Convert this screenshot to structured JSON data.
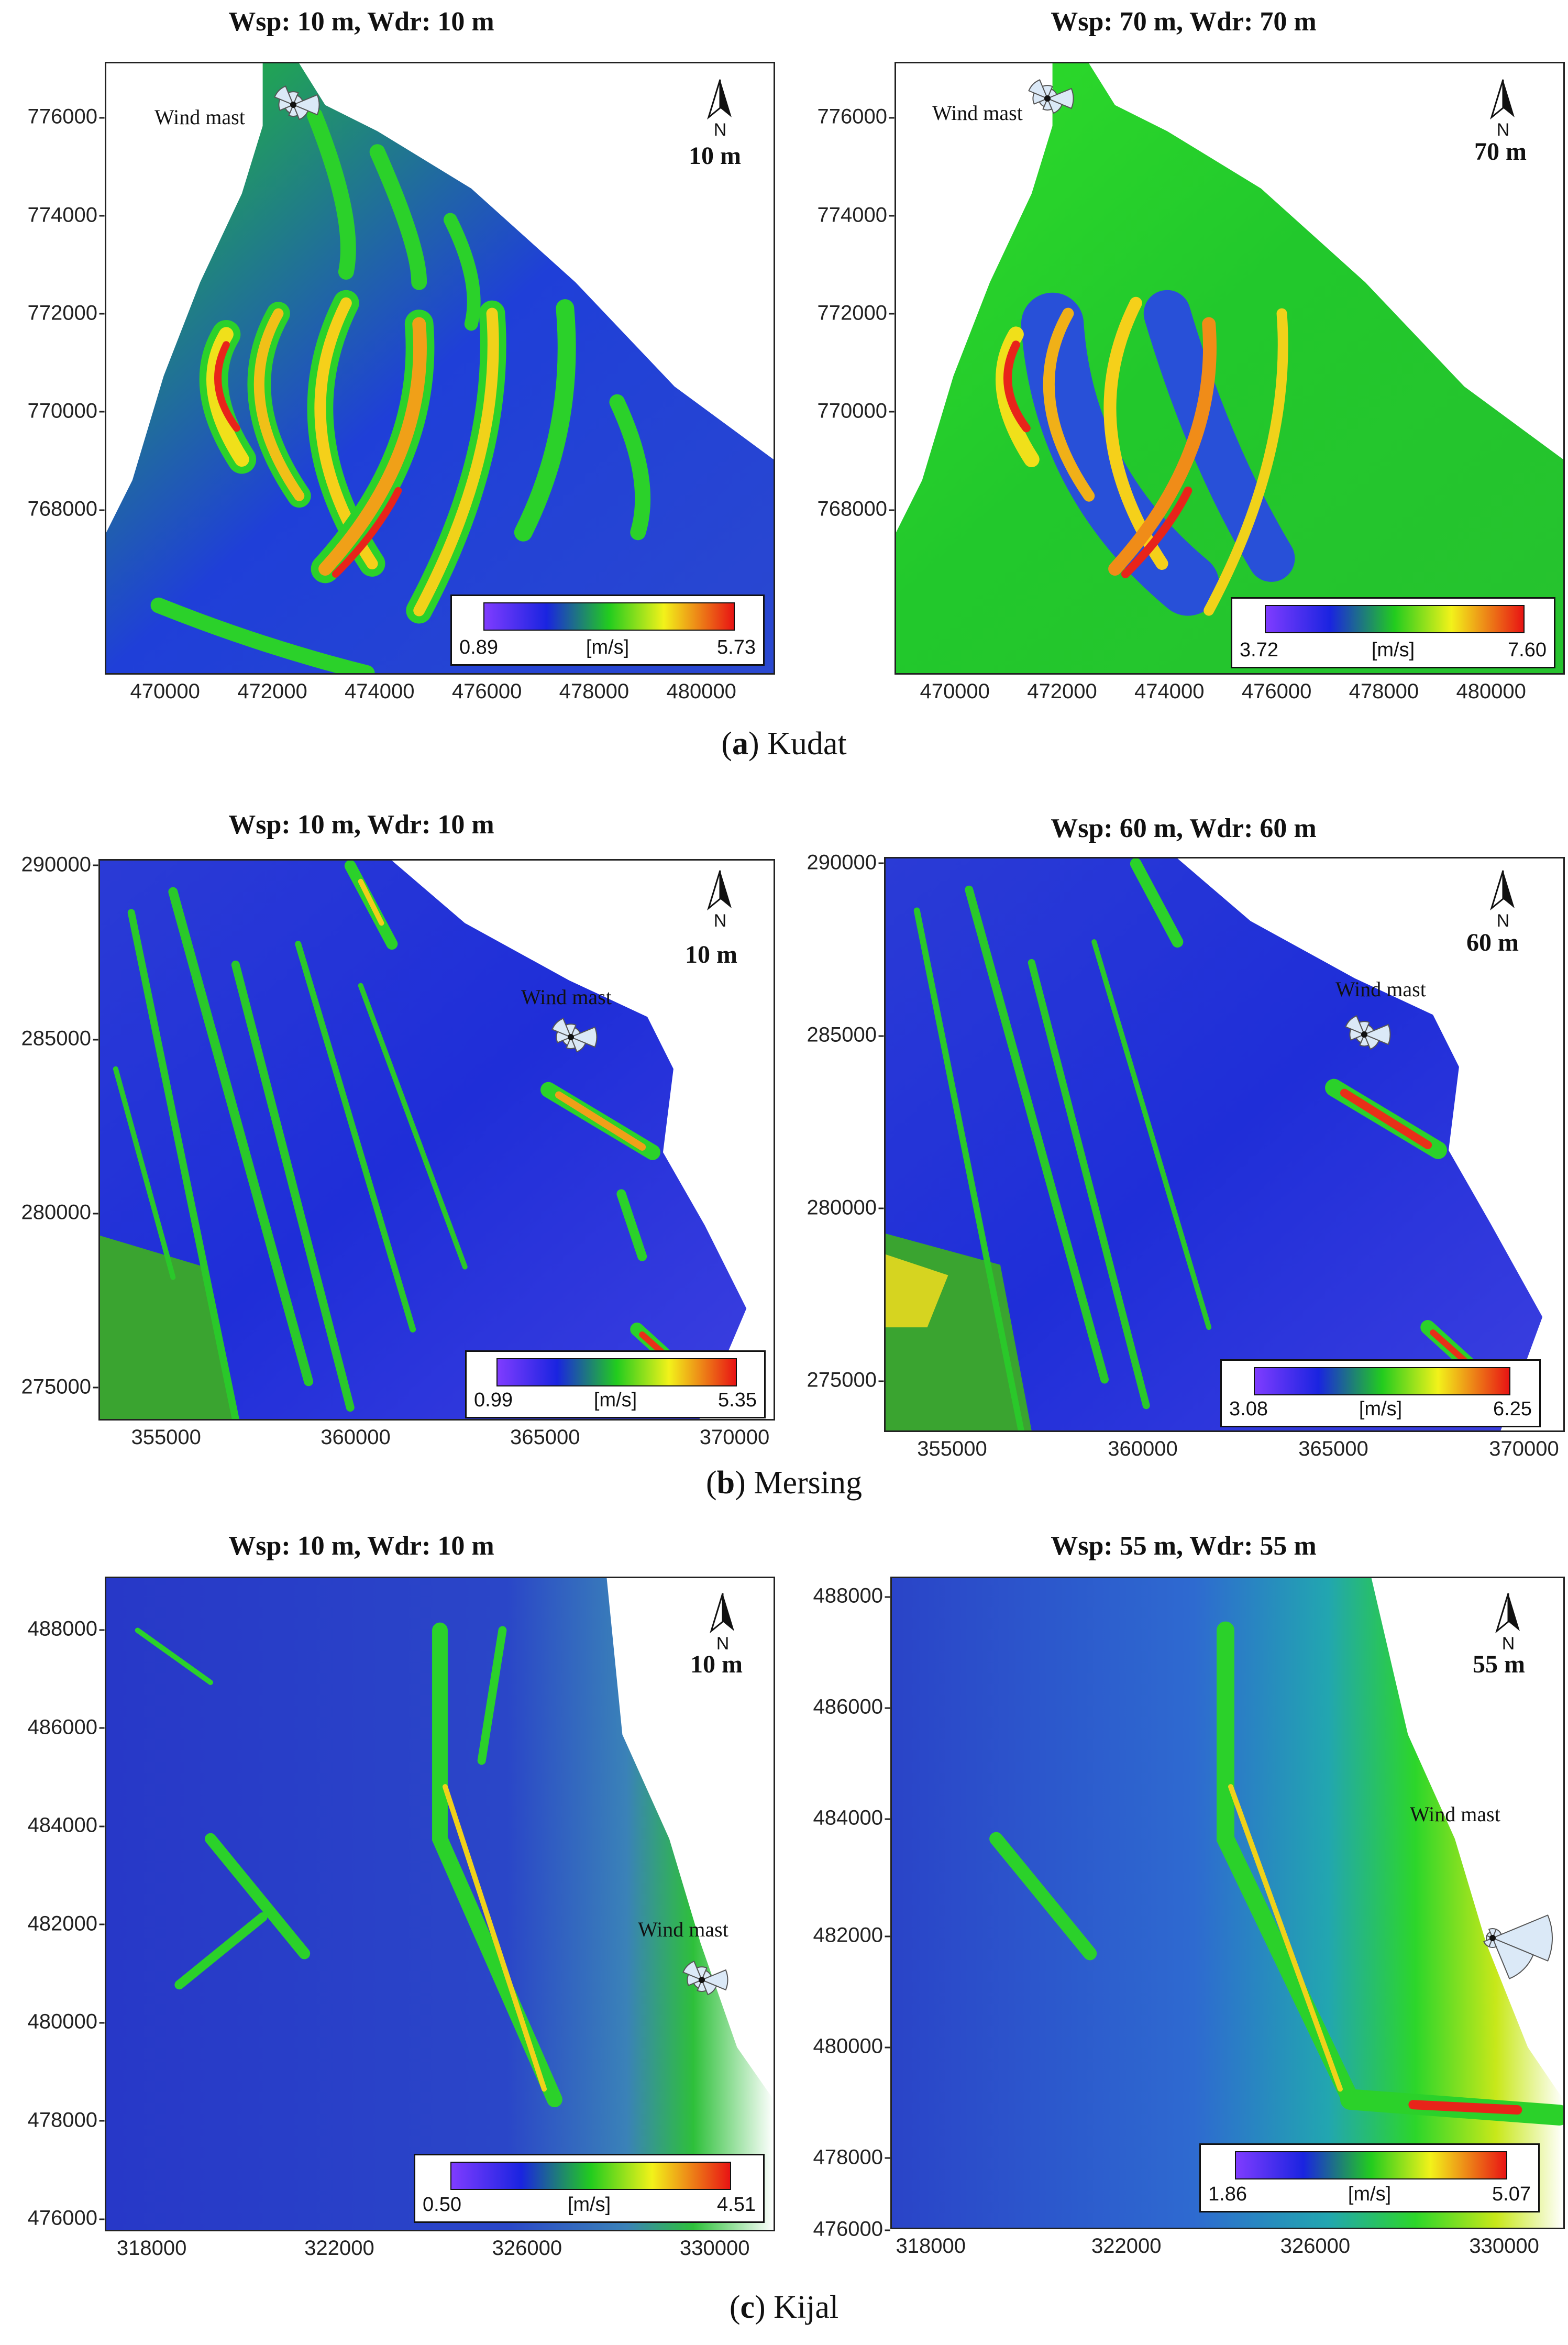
{
  "rows": [
    {
      "caption": {
        "letter": "a",
        "name": "Kudat"
      },
      "panels": [
        {
          "title": "Wsp: 10 m, Wdr: 10 m",
          "height_label": "10 m",
          "north": "N",
          "mast_label": "Wind mast",
          "legend": {
            "min": "0.89",
            "unit": "[m/s]",
            "max": "5.73"
          },
          "yticks": [
            "776000",
            "774000",
            "772000",
            "770000",
            "768000"
          ],
          "xticks": [
            "470000",
            "472000",
            "474000",
            "476000",
            "478000",
            "480000"
          ]
        },
        {
          "title": "Wsp: 70 m, Wdr: 70 m",
          "height_label": "70 m",
          "north": "N",
          "mast_label": "Wind mast",
          "legend": {
            "min": "3.72",
            "unit": "[m/s]",
            "max": "7.60"
          },
          "yticks": [
            "776000",
            "774000",
            "772000",
            "770000",
            "768000"
          ],
          "xticks": [
            "470000",
            "472000",
            "474000",
            "476000",
            "478000",
            "480000"
          ]
        }
      ]
    },
    {
      "caption": {
        "letter": "b",
        "name": "Mersing"
      },
      "panels": [
        {
          "title": "Wsp: 10 m, Wdr: 10 m",
          "height_label": "10 m",
          "north": "N",
          "mast_label": "Wind mast",
          "legend": {
            "min": "0.99",
            "unit": "[m/s]",
            "max": "5.35"
          },
          "yticks": [
            "290000",
            "285000",
            "280000",
            "275000"
          ],
          "xticks": [
            "355000",
            "360000",
            "365000",
            "370000"
          ]
        },
        {
          "title": "Wsp: 60 m, Wdr: 60 m",
          "height_label": "60 m",
          "north": "N",
          "mast_label": "Wind mast",
          "legend": {
            "min": "3.08",
            "unit": "[m/s]",
            "max": "6.25"
          },
          "yticks": [
            "290000",
            "285000",
            "280000",
            "275000"
          ],
          "xticks": [
            "355000",
            "360000",
            "365000",
            "370000"
          ]
        }
      ]
    },
    {
      "caption": {
        "letter": "c",
        "name": "Kijal"
      },
      "panels": [
        {
          "title": "Wsp: 10 m, Wdr: 10 m",
          "height_label": "10 m",
          "north": "N",
          "mast_label": "Wind mast",
          "legend": {
            "min": "0.50",
            "unit": "[m/s]",
            "max": "4.51"
          },
          "yticks": [
            "488000",
            "486000",
            "484000",
            "482000",
            "480000",
            "478000",
            "476000"
          ],
          "xticks": [
            "318000",
            "322000",
            "326000",
            "330000"
          ]
        },
        {
          "title": "Wsp: 55 m, Wdr: 55 m",
          "height_label": "55 m",
          "north": "N",
          "mast_label": "Wind mast",
          "legend": {
            "min": "1.86",
            "unit": "[m/s]",
            "max": "5.07"
          },
          "yticks": [
            "488000",
            "486000",
            "484000",
            "482000",
            "480000",
            "478000",
            "476000"
          ],
          "xticks": [
            "318000",
            "322000",
            "326000",
            "330000"
          ]
        }
      ]
    }
  ],
  "colors": {
    "low": "#7f3cff",
    "mid_low": "#1a24e0",
    "mid": "#22cc1e",
    "mid_high": "#f2f21a",
    "high": "#e81414"
  }
}
